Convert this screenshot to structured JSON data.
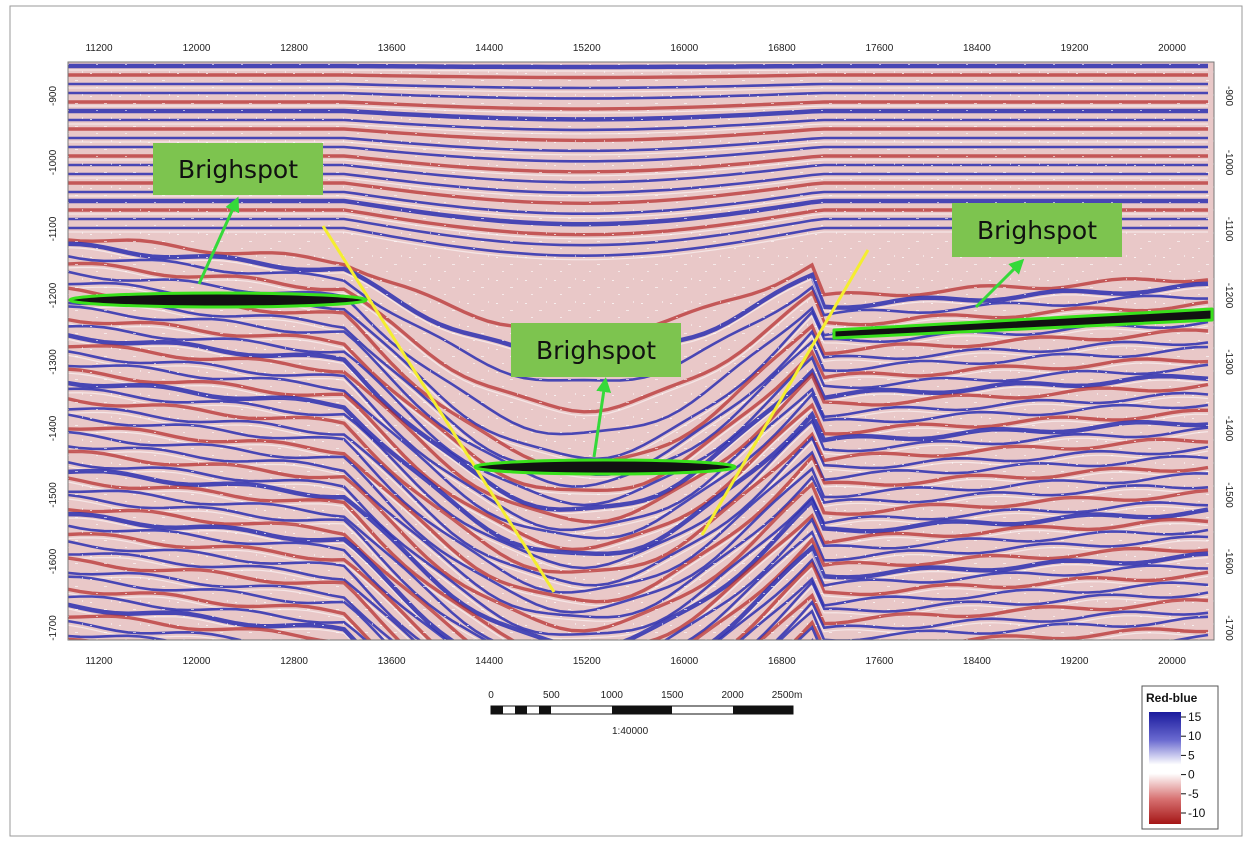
{
  "x_axis": {
    "ticks": [
      "11200",
      "12000",
      "12800",
      "13600",
      "14400",
      "15200",
      "16000",
      "16800",
      "17600",
      "18400",
      "19200",
      "20000"
    ]
  },
  "y_axis": {
    "ticks": [
      "-900",
      "-1000",
      "-1100",
      "-1200",
      "-1300",
      "-1400",
      "-1500",
      "-1600",
      "-1700"
    ]
  },
  "annotations": {
    "brightspots": [
      {
        "label": "Brighspot"
      },
      {
        "label": "Brighspot"
      },
      {
        "label": "Brighspot"
      }
    ],
    "colors": {
      "highlight": "#39e01b",
      "arrow": "#35d93a",
      "fault": "#f4ee30",
      "callout_bg": "#7dc44f"
    }
  },
  "scale_bar": {
    "labels": [
      "0",
      "500",
      "1000",
      "1500",
      "2000",
      "2500m"
    ],
    "ratio": "1:40000"
  },
  "legend": {
    "title": "Red-blue",
    "values": [
      "15",
      "10",
      "5",
      "0",
      "-5",
      "-10"
    ],
    "colors": {
      "max": "#1a1a9c",
      "mid": "#ffffff",
      "min": "#a41616"
    }
  }
}
